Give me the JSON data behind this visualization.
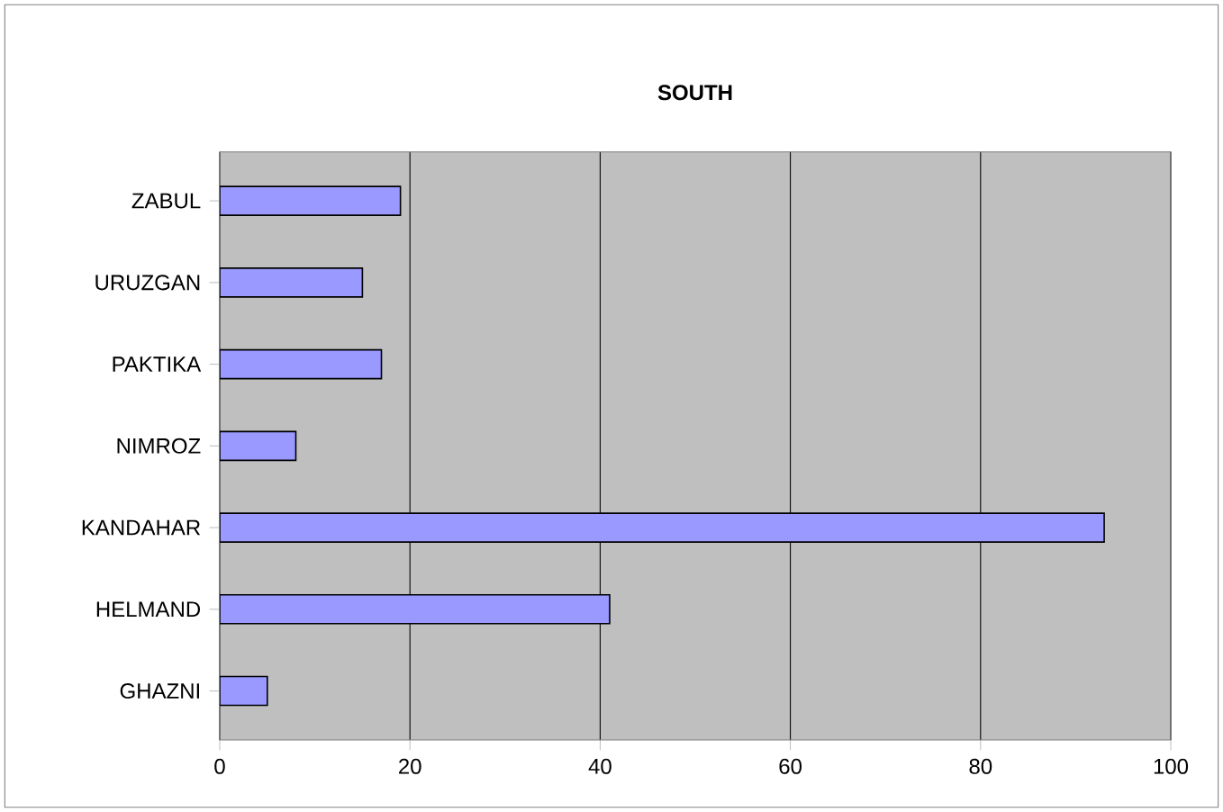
{
  "chart_data": {
    "type": "bar",
    "orientation": "horizontal",
    "title": "SOUTH",
    "categories": [
      "ZABUL",
      "URUZGAN",
      "PAKTIKA",
      "NIMROZ",
      "KANDAHAR",
      "HELMAND",
      "GHAZNI"
    ],
    "values": [
      19,
      15,
      17,
      8,
      93,
      41,
      5
    ],
    "color": "#9999ff",
    "xlim": [
      0,
      100
    ],
    "xticks": [
      0,
      20,
      40,
      60,
      80,
      100
    ],
    "grid": "x"
  }
}
